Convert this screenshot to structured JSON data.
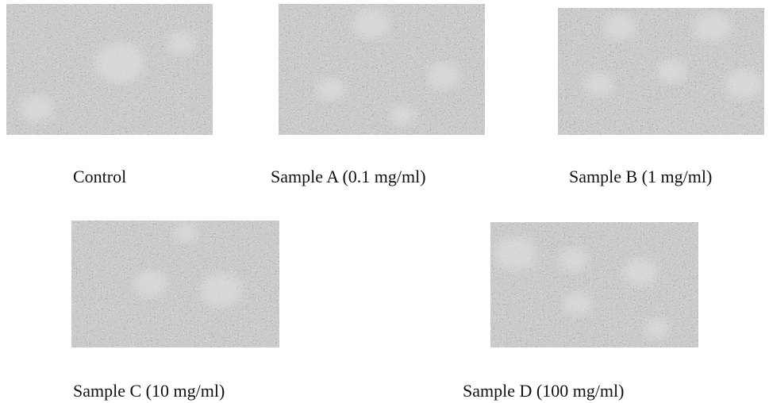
{
  "panels": [
    {
      "caption": "Control"
    },
    {
      "caption": "Sample A (0.1 mg/ml)"
    },
    {
      "caption": "Sample B (1 mg/ml)"
    },
    {
      "caption": "Sample C (10 mg/ml)"
    },
    {
      "caption": "Sample D (100 mg/ml)"
    }
  ]
}
